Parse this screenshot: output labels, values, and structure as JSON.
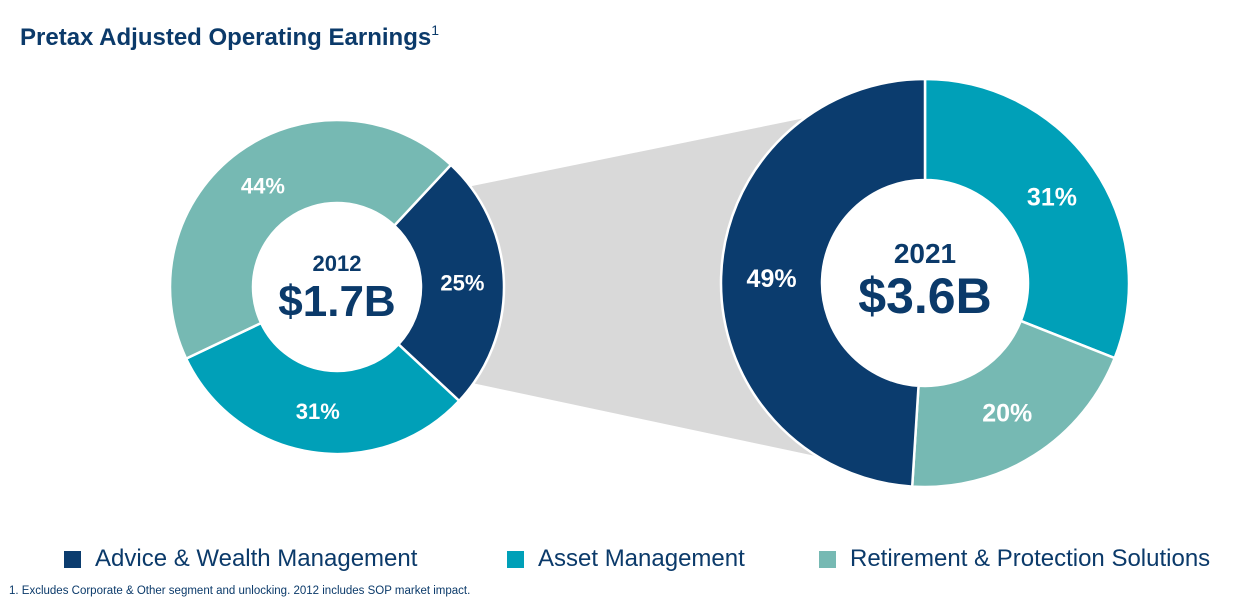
{
  "title": "Pretax Adjusted Operating Earnings",
  "title_footnote_marker": "1",
  "colors": {
    "awm": "#0b3c6e",
    "am": "#00a0b8",
    "rps": "#76b9b3",
    "connector": "#d9d9d9",
    "text": "#0b3a6a"
  },
  "chart_data": [
    {
      "type": "pie",
      "variant": "donut",
      "year": "2012",
      "total": "$1.7B",
      "categories": [
        "Advice & Wealth Management",
        "Asset Management",
        "Retirement & Protection Solutions"
      ],
      "values": [
        25,
        31,
        44
      ],
      "labels": [
        "25%",
        "31%",
        "44%"
      ]
    },
    {
      "type": "pie",
      "variant": "donut",
      "year": "2021",
      "total": "$3.6B",
      "categories": [
        "Asset Management",
        "Retirement & Protection Solutions",
        "Advice & Wealth Management"
      ],
      "values": [
        31,
        20,
        49
      ],
      "labels": [
        "31%",
        "20%",
        "49%"
      ]
    }
  ],
  "legend": [
    {
      "label": "Advice & Wealth Management",
      "color": "#0b3c6e"
    },
    {
      "label": "Asset Management",
      "color": "#00a0b8"
    },
    {
      "label": "Retirement & Protection Solutions",
      "color": "#76b9b3"
    }
  ],
  "footnote": "1. Excludes Corporate & Other segment and unlocking. 2012 includes SOP market impact."
}
